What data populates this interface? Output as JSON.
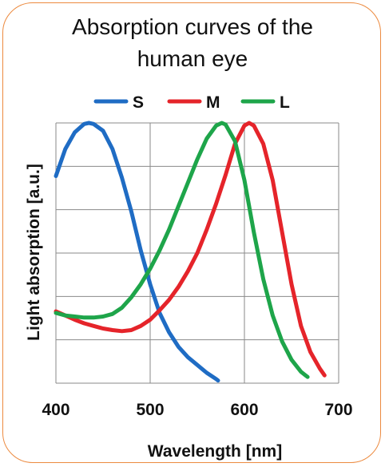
{
  "chart_data": {
    "type": "line",
    "title": "Absorption curves of the\nhuman eye",
    "xlabel": "Wavelength [nm]",
    "ylabel": "Light absorption [a.u.]",
    "xlim": [
      400,
      700
    ],
    "ylim": [
      0,
      5
    ],
    "xticks": [
      400,
      500,
      600,
      700
    ],
    "grid": true,
    "legend": "top",
    "series": [
      {
        "name": "S",
        "color": "#1f6cc4",
        "x": [
          400,
          410,
          420,
          430,
          435,
          440,
          450,
          460,
          470,
          480,
          490,
          500,
          510,
          520,
          530,
          540,
          550,
          560,
          570,
          572
        ],
        "y": [
          3.98,
          4.5,
          4.82,
          4.98,
          5.0,
          4.98,
          4.85,
          4.5,
          3.95,
          3.3,
          2.55,
          1.9,
          1.35,
          0.98,
          0.7,
          0.5,
          0.35,
          0.2,
          0.08,
          0.05
        ]
      },
      {
        "name": "M",
        "color": "#e5242a",
        "x": [
          400,
          410,
          420,
          430,
          440,
          450,
          460,
          470,
          480,
          490,
          500,
          510,
          520,
          530,
          540,
          550,
          560,
          570,
          580,
          590,
          600,
          605,
          610,
          620,
          630,
          640,
          650,
          660,
          670,
          680,
          685
        ],
        "y": [
          1.38,
          1.3,
          1.22,
          1.15,
          1.1,
          1.05,
          1.02,
          1.0,
          1.02,
          1.1,
          1.22,
          1.4,
          1.6,
          1.85,
          2.15,
          2.5,
          2.95,
          3.45,
          4.0,
          4.6,
          4.95,
          5.0,
          4.95,
          4.6,
          3.9,
          2.9,
          1.9,
          1.1,
          0.6,
          0.28,
          0.15
        ]
      },
      {
        "name": "L",
        "color": "#1ea54a",
        "x": [
          400,
          410,
          420,
          430,
          440,
          450,
          460,
          470,
          480,
          490,
          500,
          510,
          520,
          530,
          540,
          550,
          560,
          570,
          576,
          580,
          590,
          600,
          610,
          620,
          630,
          640,
          650,
          660,
          667
        ],
        "y": [
          1.35,
          1.3,
          1.28,
          1.26,
          1.26,
          1.28,
          1.33,
          1.45,
          1.65,
          1.9,
          2.2,
          2.55,
          2.95,
          3.4,
          3.85,
          4.3,
          4.7,
          4.95,
          5.0,
          4.97,
          4.65,
          3.9,
          2.9,
          2.0,
          1.3,
          0.8,
          0.45,
          0.22,
          0.12
        ]
      }
    ]
  }
}
